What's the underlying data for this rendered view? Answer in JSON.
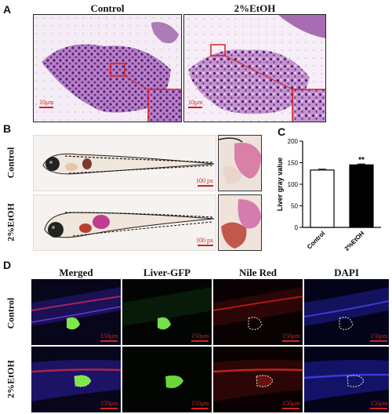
{
  "panels": {
    "A": {
      "letter": "A",
      "cols": [
        "Control",
        "2%EtOH"
      ],
      "scale": "10μm"
    },
    "B": {
      "letter": "B",
      "rows": [
        "Control",
        "2%EtOH"
      ],
      "scale": "100 px"
    },
    "C": {
      "letter": "C",
      "chart_data": {
        "type": "bar",
        "categories": [
          "Control",
          "2%EtOH"
        ],
        "values": [
          133,
          145
        ],
        "errors": [
          2,
          2
        ],
        "ylabel": "Liver gray value",
        "ylim": [
          0,
          200
        ],
        "yticks": [
          0,
          50,
          100,
          150,
          200
        ],
        "annotation": "**",
        "colors": [
          "#ffffff",
          "#000000"
        ]
      }
    },
    "D": {
      "letter": "D",
      "cols": [
        "Merged",
        "Liver-GFP",
        "Nile Red",
        "DAPI"
      ],
      "rows": [
        "Control",
        "2%EtOH"
      ],
      "scale": "150μm"
    }
  }
}
